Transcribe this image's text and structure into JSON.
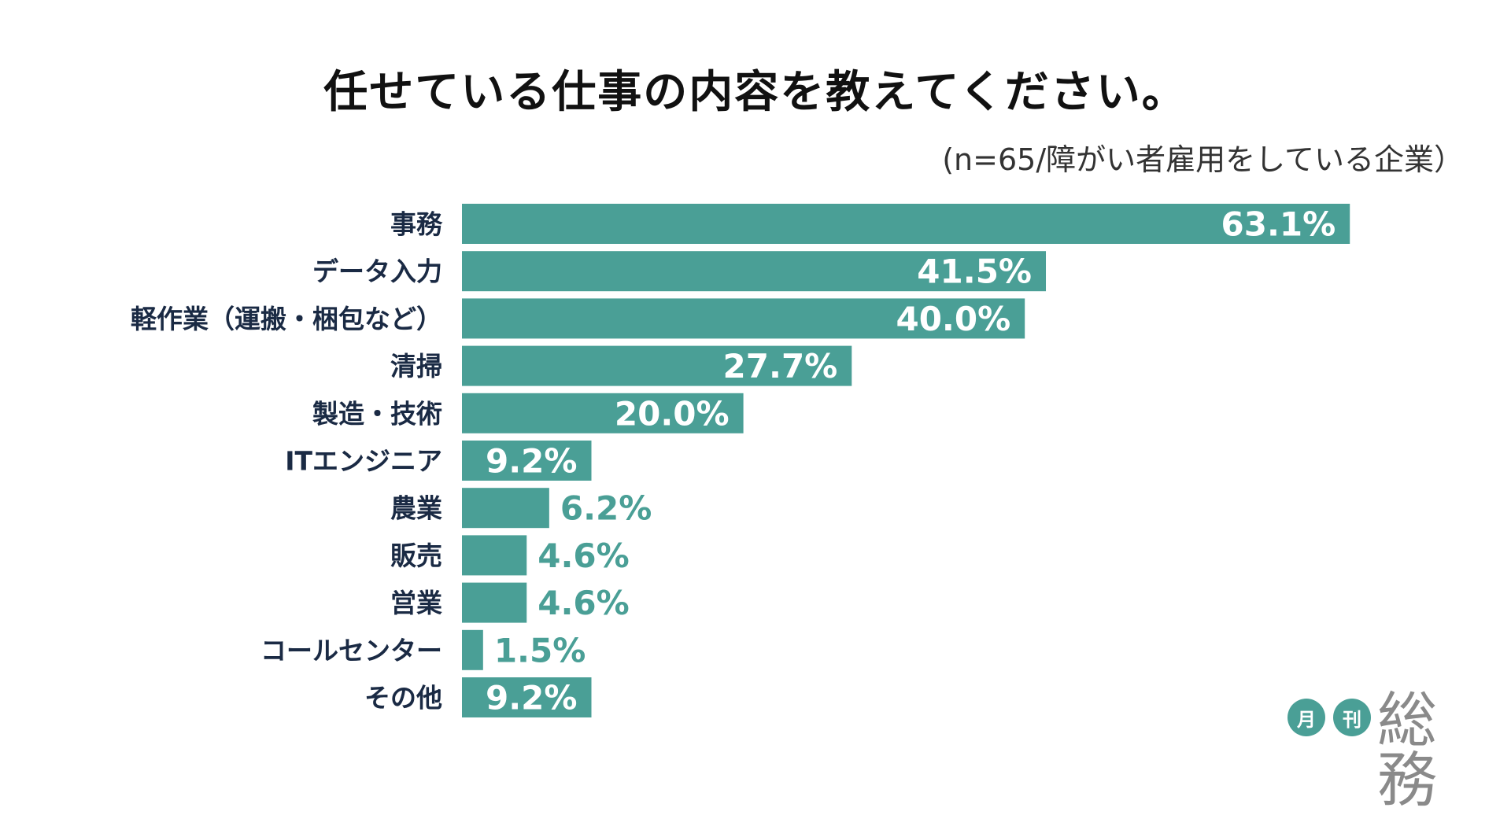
{
  "title": "任せている仕事の内容を教えてください。",
  "subtitle": "(n=65/障がい者雇用をしている企業）",
  "colors": {
    "bar": "#4a9f96",
    "label_dark": "#1a2a44",
    "inside_label": "#ffffff"
  },
  "chart_data": {
    "type": "bar",
    "orientation": "horizontal",
    "categories": [
      "事務",
      "データ入力",
      "軽作業（運搬・梱包など）",
      "清掃",
      "製造・技術",
      "ITエンジニア",
      "農業",
      "販売",
      "営業",
      "コールセンター",
      "その他"
    ],
    "values": [
      63.1,
      41.5,
      40.0,
      27.7,
      20.0,
      9.2,
      6.2,
      4.6,
      4.6,
      1.5,
      9.2
    ],
    "value_labels": [
      "63.1%",
      "41.5%",
      "40.0%",
      "27.7%",
      "20.0%",
      "9.2%",
      "6.2%",
      "4.6%",
      "4.6%",
      "1.5%",
      "9.2%"
    ],
    "unit": "%",
    "grid": false,
    "legend": "none"
  },
  "logo": {
    "badge1": "月",
    "badge2": "刊",
    "wordmark": "総務"
  }
}
